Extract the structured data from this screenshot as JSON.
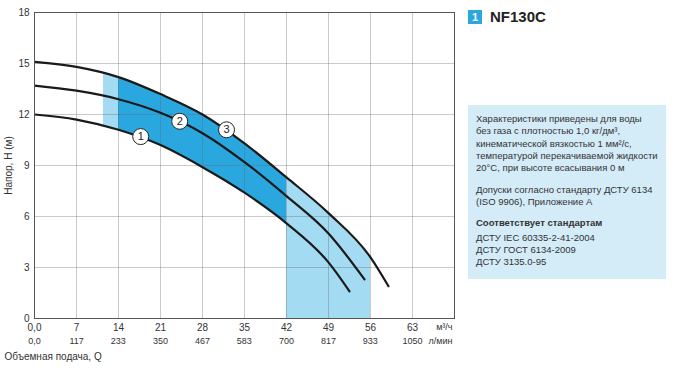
{
  "chart_data": {
    "type": "line",
    "title": "NF130C",
    "badge": "1",
    "xlabel": "м³/ч",
    "x2label": "л/мин",
    "bottom_label": "Объемная подача, Q",
    "ylabel": "Напор, H (м)",
    "xlim": [
      0,
      70
    ],
    "xticks": [
      {
        "value": 0,
        "label": "0,0"
      },
      7,
      14,
      21,
      28,
      35,
      42,
      49,
      56,
      63
    ],
    "x2lim": [
      0,
      1166.7
    ],
    "x2ticks": [
      {
        "value": 0,
        "label": "0,0"
      },
      117,
      233,
      350,
      467,
      583,
      700,
      817,
      933,
      1050
    ],
    "ylim": [
      0,
      18
    ],
    "yticks": [
      0,
      3,
      6,
      9,
      12,
      15,
      18
    ],
    "grid": true,
    "series": [
      {
        "color": "#1a1a1a",
        "x": [
          0,
          7,
          14,
          21,
          28,
          35,
          42,
          49,
          52.5
        ],
        "values": [
          12.0,
          11.7,
          11.1,
          10.2,
          8.9,
          7.4,
          5.6,
          3.3,
          1.6
        ]
      },
      {
        "color": "#1a1a1a",
        "x": [
          0,
          7,
          14,
          21,
          28,
          35,
          42,
          49,
          55
        ],
        "values": [
          13.7,
          13.4,
          12.9,
          12.1,
          10.9,
          9.2,
          7.2,
          5.0,
          2.3
        ]
      },
      {
        "color": "#1a1a1a",
        "x": [
          0,
          7,
          14,
          21,
          28,
          35,
          42,
          49,
          56,
          59
        ],
        "values": [
          15.1,
          14.8,
          14.2,
          13.2,
          12.0,
          10.3,
          8.3,
          6.2,
          3.6,
          1.9
        ]
      }
    ],
    "areas": [
      {
        "color": "#a3dbf3",
        "x": [
          11.5,
          14,
          21,
          28,
          35,
          42
        ],
        "lower": [
          11.3,
          11.1,
          10.2,
          8.9,
          7.4,
          5.6
        ],
        "upper": [
          14.4,
          14.2,
          13.2,
          12.0,
          10.3,
          8.3
        ]
      },
      {
        "color": "#a3dbf3",
        "x": [
          42,
          49,
          56
        ],
        "lower": [
          0,
          0,
          0
        ],
        "upper": [
          8.3,
          6.2,
          3.6
        ]
      },
      {
        "color": "#2aa7df",
        "x": [
          14,
          21,
          28,
          35,
          42
        ],
        "lower": [
          11.1,
          10.2,
          8.9,
          7.4,
          5.6
        ],
        "upper": [
          14.2,
          13.2,
          12.0,
          10.3,
          8.3
        ]
      }
    ],
    "annotations": [
      {
        "text": "1",
        "x": 17.7,
        "y": 10.7
      },
      {
        "text": "2",
        "x": 24.2,
        "y": 11.6
      },
      {
        "text": "3",
        "x": 32,
        "y": 11.1
      }
    ],
    "notes": [
      "Характеристики приведены для воды без газа с плотностью 1,0 кг/дм³, кинематической вязкостью 1 мм²/с, температурой перекачиваемой жидкости 20°С, при высоте всасывания 0 м",
      "Допуски согласно стандарту ДСТУ 6134 (ISO 9906), Приложение А"
    ],
    "standards_title": "Соответствует стандартам",
    "standards": [
      "ДСТУ IEC 60335-2-41-2004",
      "ДСТУ ГОСТ 6134-2009",
      "ДСТУ 3135.0-95"
    ]
  }
}
